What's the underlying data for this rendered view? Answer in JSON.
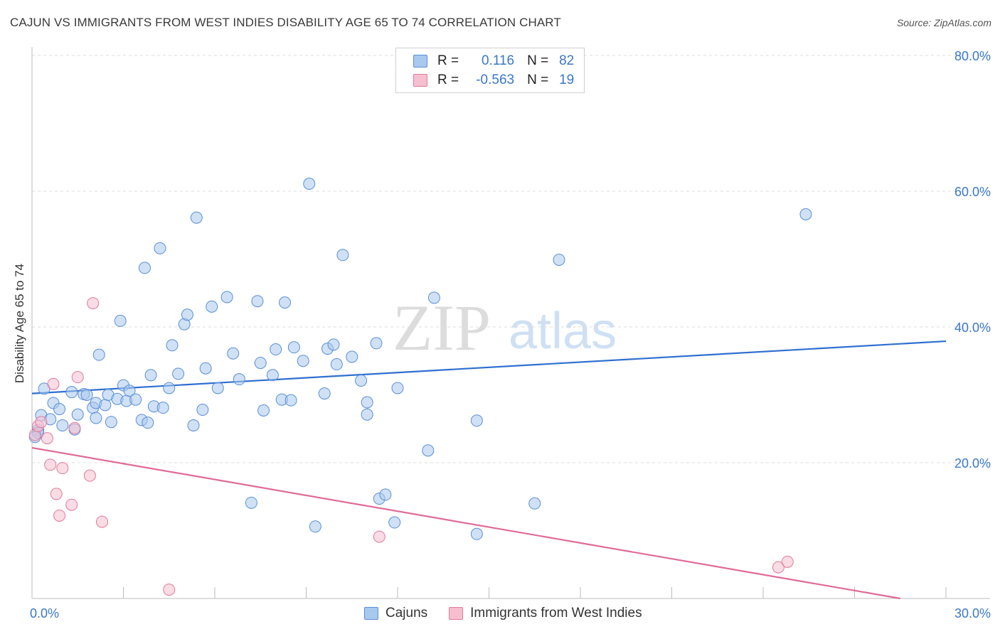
{
  "title": "CAJUN VS IMMIGRANTS FROM WEST INDIES DISABILITY AGE 65 TO 74 CORRELATION CHART",
  "source": "Source: ZipAtlas.com",
  "watermark": {
    "zip": "ZIP",
    "atlas": "atlas"
  },
  "legend": {
    "rows": [
      {
        "r_label": "R =",
        "r_value": "0.116",
        "n_label": "N =",
        "n_value": "82",
        "color": "#a9c8ee",
        "edge": "#5a8fd6"
      },
      {
        "r_label": "R =",
        "r_value": "-0.563",
        "n_label": "N =",
        "n_value": "19",
        "color": "#f6bfd0",
        "edge": "#e07a9c"
      }
    ]
  },
  "bottom_legend": [
    "Cajuns",
    "Immigrants from West Indies"
  ],
  "chart_data": {
    "type": "scatter",
    "title": "CAJUN VS IMMIGRANTS FROM WEST INDIES DISABILITY AGE 65 TO 74 CORRELATION CHART",
    "xlabel": "",
    "ylabel": "Disability Age 65 to 74",
    "xlim": [
      0,
      30
    ],
    "ylim": [
      0,
      80
    ],
    "x_tick_labels": [
      "0.0%",
      "30.0%"
    ],
    "y_ticks": [
      20,
      40,
      60,
      80
    ],
    "y_tick_labels": [
      "20.0%",
      "40.0%",
      "60.0%",
      "80.0%"
    ],
    "grid": true,
    "legend_position": "top-center",
    "series": [
      {
        "name": "Cajuns",
        "color": "#a9c8ee",
        "edge": "#5a8fd6",
        "line_color": "#2f6fd0",
        "trend": [
          [
            0,
            30.2
          ],
          [
            30,
            37.9
          ]
        ],
        "points": [
          [
            0.2,
            24.8
          ],
          [
            0.3,
            27.0
          ],
          [
            0.4,
            30.9
          ],
          [
            0.6,
            26.4
          ],
          [
            0.7,
            28.8
          ],
          [
            0.9,
            27.9
          ],
          [
            1.0,
            25.5
          ],
          [
            1.3,
            30.4
          ],
          [
            1.4,
            24.9
          ],
          [
            1.5,
            27.1
          ],
          [
            1.7,
            30.1
          ],
          [
            1.8,
            30.0
          ],
          [
            2.0,
            28.1
          ],
          [
            2.1,
            28.8
          ],
          [
            2.1,
            26.6
          ],
          [
            2.2,
            35.9
          ],
          [
            2.4,
            28.5
          ],
          [
            2.5,
            30.0
          ],
          [
            2.6,
            26.0
          ],
          [
            2.8,
            29.4
          ],
          [
            2.9,
            40.9
          ],
          [
            3.0,
            31.4
          ],
          [
            3.1,
            29.1
          ],
          [
            3.2,
            30.6
          ],
          [
            3.4,
            29.3
          ],
          [
            3.6,
            26.3
          ],
          [
            3.7,
            48.7
          ],
          [
            3.8,
            25.9
          ],
          [
            3.9,
            32.9
          ],
          [
            4.0,
            28.3
          ],
          [
            4.2,
            51.6
          ],
          [
            4.3,
            28.1
          ],
          [
            4.5,
            31.0
          ],
          [
            4.6,
            37.3
          ],
          [
            4.8,
            33.1
          ],
          [
            5.0,
            40.4
          ],
          [
            5.1,
            41.8
          ],
          [
            5.3,
            25.5
          ],
          [
            5.4,
            56.1
          ],
          [
            5.6,
            27.8
          ],
          [
            5.7,
            33.9
          ],
          [
            5.9,
            43.0
          ],
          [
            6.1,
            31.0
          ],
          [
            6.4,
            44.4
          ],
          [
            6.6,
            36.1
          ],
          [
            6.8,
            32.3
          ],
          [
            7.2,
            14.1
          ],
          [
            7.4,
            43.8
          ],
          [
            7.5,
            34.7
          ],
          [
            7.6,
            27.7
          ],
          [
            7.9,
            32.9
          ],
          [
            8.0,
            36.7
          ],
          [
            8.2,
            29.3
          ],
          [
            8.3,
            43.6
          ],
          [
            8.5,
            29.2
          ],
          [
            8.6,
            37.0
          ],
          [
            8.9,
            35.0
          ],
          [
            9.1,
            61.1
          ],
          [
            9.3,
            10.6
          ],
          [
            9.6,
            30.2
          ],
          [
            9.7,
            36.8
          ],
          [
            9.9,
            37.4
          ],
          [
            10.0,
            34.5
          ],
          [
            10.2,
            50.6
          ],
          [
            10.5,
            35.6
          ],
          [
            10.8,
            32.1
          ],
          [
            11.0,
            28.9
          ],
          [
            11.0,
            27.1
          ],
          [
            11.3,
            37.6
          ],
          [
            11.4,
            14.7
          ],
          [
            11.6,
            15.3
          ],
          [
            11.9,
            11.2
          ],
          [
            12.0,
            31.0
          ],
          [
            13.0,
            21.8
          ],
          [
            13.2,
            44.3
          ],
          [
            14.6,
            26.2
          ],
          [
            14.6,
            9.5
          ],
          [
            16.5,
            14.0
          ],
          [
            17.3,
            49.9
          ],
          [
            25.4,
            56.6
          ],
          [
            0.2,
            24.4
          ],
          [
            0.1,
            23.8
          ]
        ]
      },
      {
        "name": "Immigrants from West Indies",
        "color": "#f6bfd0",
        "edge": "#e07a9c",
        "line_color": "#e06a98",
        "trend": [
          [
            0,
            22.2
          ],
          [
            28.5,
            0
          ]
        ],
        "points": [
          [
            0.1,
            24.1
          ],
          [
            0.2,
            25.4
          ],
          [
            0.3,
            26.0
          ],
          [
            0.5,
            23.6
          ],
          [
            0.6,
            19.7
          ],
          [
            0.7,
            31.6
          ],
          [
            0.8,
            15.4
          ],
          [
            0.9,
            12.2
          ],
          [
            1.0,
            19.2
          ],
          [
            1.3,
            13.8
          ],
          [
            1.4,
            25.1
          ],
          [
            1.5,
            32.6
          ],
          [
            1.9,
            18.1
          ],
          [
            2.0,
            43.5
          ],
          [
            2.3,
            11.3
          ],
          [
            4.5,
            1.3
          ],
          [
            11.4,
            9.1
          ],
          [
            24.5,
            4.6
          ],
          [
            24.8,
            5.4
          ]
        ]
      }
    ]
  }
}
